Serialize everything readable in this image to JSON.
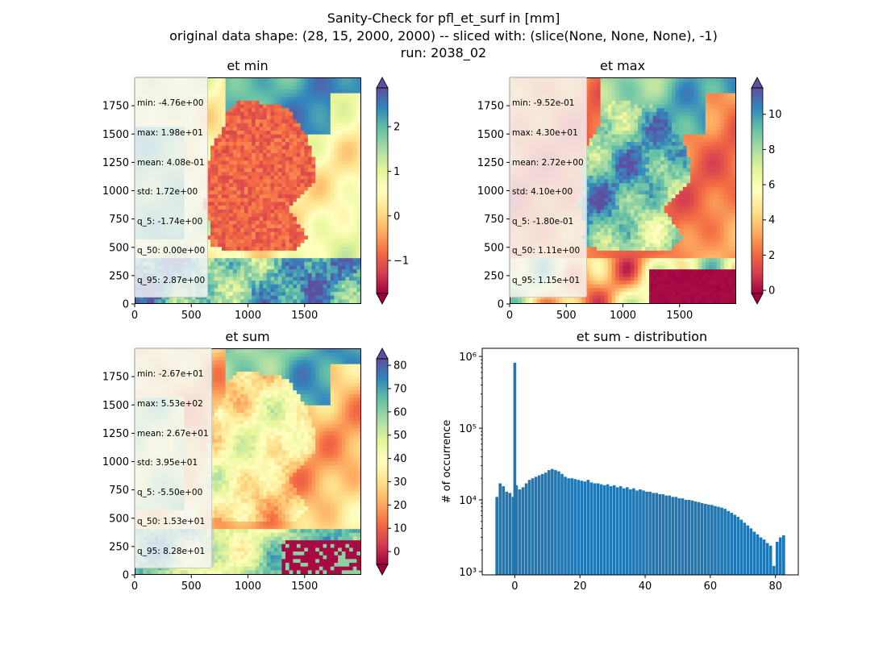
{
  "figure": {
    "suptitle_line1": "Sanity-Check for pfl_et_surf in [mm]",
    "suptitle_line2": "original data shape: (28, 15, 2000, 2000) -- sliced with: (slice(None, None, None), -1)",
    "suptitle_line3": "run: 2038_02"
  },
  "colormap": {
    "name": "Spectral",
    "stops": [
      "#9e0142",
      "#d53e4f",
      "#f46d43",
      "#fdae61",
      "#fee08b",
      "#ffffbf",
      "#e6f598",
      "#abdda4",
      "#66c2a5",
      "#3288bd",
      "#5e4fa2"
    ]
  },
  "hist_color": "#1f77b4",
  "panels": [
    {
      "id": "et-min",
      "title": "et min",
      "stats": [
        "min: -4.76e+00",
        "max: 1.98e+01",
        "mean: 4.08e-01",
        "std: 1.72e+00",
        "q_5: -1.74e+00",
        "q_50: 0.00e+00",
        "q_95: 2.87e+00"
      ],
      "colorbar": {
        "vmin": -1.74,
        "vmax": 2.87,
        "ticks": [
          -1,
          0,
          1,
          2
        ],
        "tick_labels": [
          "−1",
          "0",
          "1",
          "2"
        ]
      }
    },
    {
      "id": "et-max",
      "title": "et max",
      "stats": [
        "min: -9.52e-01",
        "max: 4.30e+01",
        "mean: 2.72e+00",
        "std: 4.10e+00",
        "q_5: -1.80e-01",
        "q_50: 1.11e+00",
        "q_95: 1.15e+01"
      ],
      "colorbar": {
        "vmin": -0.18,
        "vmax": 11.5,
        "ticks": [
          0,
          2,
          4,
          6,
          8,
          10
        ],
        "tick_labels": [
          "0",
          "2",
          "4",
          "6",
          "8",
          "10"
        ]
      }
    },
    {
      "id": "et-sum",
      "title": "et sum",
      "stats": [
        "min: -2.67e+01",
        "max: 5.53e+02",
        "mean: 2.67e+01",
        "std: 3.95e+01",
        "q_5: -5.50e+00",
        "q_50: 1.53e+01",
        "q_95: 8.28e+01"
      ],
      "colorbar": {
        "vmin": -5.5,
        "vmax": 82.8,
        "ticks": [
          0,
          10,
          20,
          30,
          40,
          50,
          60,
          70,
          80
        ],
        "tick_labels": [
          "0",
          "10",
          "20",
          "30",
          "40",
          "50",
          "60",
          "70",
          "80"
        ]
      }
    }
  ],
  "map_axes": {
    "x_ticks": [
      0,
      500,
      1000,
      1500
    ],
    "x_tick_labels": [
      "0",
      "500",
      "1000",
      "1500"
    ],
    "y_ticks": [
      0,
      250,
      500,
      750,
      1000,
      1250,
      1500,
      1750
    ],
    "y_tick_labels": [
      "0",
      "250",
      "500",
      "750",
      "1000",
      "1250",
      "1500",
      "1750"
    ],
    "xlim": [
      0,
      2000
    ],
    "ylim": [
      0,
      2000
    ]
  },
  "chart_data": [
    {
      "type": "heatmap",
      "title": "et min",
      "xlim": [
        0,
        2000
      ],
      "ylim": [
        0,
        2000
      ],
      "colorbar_range": [
        -1.74,
        2.87
      ]
    },
    {
      "type": "heatmap",
      "title": "et max",
      "xlim": [
        0,
        2000
      ],
      "ylim": [
        0,
        2000
      ],
      "colorbar_range": [
        -0.18,
        11.5
      ]
    },
    {
      "type": "heatmap",
      "title": "et sum",
      "xlim": [
        0,
        2000
      ],
      "ylim": [
        0,
        2000
      ],
      "colorbar_range": [
        -5.5,
        82.8
      ]
    },
    {
      "type": "bar",
      "title": "et sum - distribution",
      "xlabel": "",
      "ylabel": "# of occurrence",
      "y_scale": "log",
      "xlim": [
        -10,
        87
      ],
      "ylim": [
        900,
        1300000
      ],
      "x_ticks": [
        0,
        20,
        40,
        60,
        80
      ],
      "x_tick_labels": [
        "0",
        "20",
        "40",
        "60",
        "80"
      ],
      "y_ticks": [
        1000,
        10000,
        100000,
        1000000
      ],
      "y_tick_labels": [
        "10³",
        "10⁴",
        "10⁵",
        "10⁶"
      ],
      "bin_width": 0.45,
      "x": [
        -5.5,
        -4.5,
        -3.5,
        -2.5,
        -1.5,
        -0.5,
        0,
        0.5,
        1.5,
        2.5,
        3.5,
        4.5,
        5.5,
        6.5,
        7.5,
        8.5,
        9.5,
        10.5,
        11.5,
        12.5,
        13.5,
        14.5,
        15.5,
        16.5,
        17.5,
        18.5,
        19.5,
        20.5,
        21.5,
        22.5,
        23.5,
        24.5,
        25.5,
        26.5,
        27.5,
        28.5,
        29.5,
        30.5,
        31.5,
        32.5,
        33.5,
        34.5,
        35.5,
        36.5,
        37.5,
        38.5,
        39.5,
        40.5,
        41.5,
        42.5,
        43.5,
        44.5,
        45.5,
        46.5,
        47.5,
        48.5,
        49.5,
        50.5,
        51.5,
        52.5,
        53.5,
        54.5,
        55.5,
        56.5,
        57.5,
        58.5,
        59.5,
        60.5,
        61.5,
        62.5,
        63.5,
        64.5,
        65.5,
        66.5,
        67.5,
        68.5,
        69.5,
        70.5,
        71.5,
        72.5,
        73.5,
        74.5,
        75.5,
        76.5,
        77.5,
        78.5,
        79.5,
        80.5,
        81.5,
        82.5
      ],
      "values": [
        11000,
        17000,
        15500,
        13000,
        12500,
        11000,
        820000,
        16000,
        14000,
        15000,
        17000,
        19000,
        20000,
        21000,
        22000,
        23000,
        24000,
        26000,
        27000,
        26000,
        25000,
        23000,
        21000,
        20000,
        20000,
        19500,
        19000,
        18500,
        18000,
        19000,
        17500,
        17000,
        17000,
        16500,
        16000,
        16500,
        15500,
        16000,
        15000,
        15500,
        14500,
        15000,
        14000,
        14500,
        13500,
        14000,
        13500,
        13000,
        13000,
        12500,
        12500,
        12000,
        12000,
        11500,
        11500,
        11000,
        11000,
        10500,
        10500,
        10000,
        10000,
        9800,
        9500,
        9300,
        9000,
        8800,
        8600,
        8500,
        8200,
        8000,
        7800,
        7500,
        7000,
        6600,
        6200,
        5800,
        5300,
        4800,
        4400,
        4000,
        3600,
        3300,
        3000,
        2800,
        2500,
        2300,
        1200,
        2600,
        3000,
        3200
      ]
    }
  ]
}
